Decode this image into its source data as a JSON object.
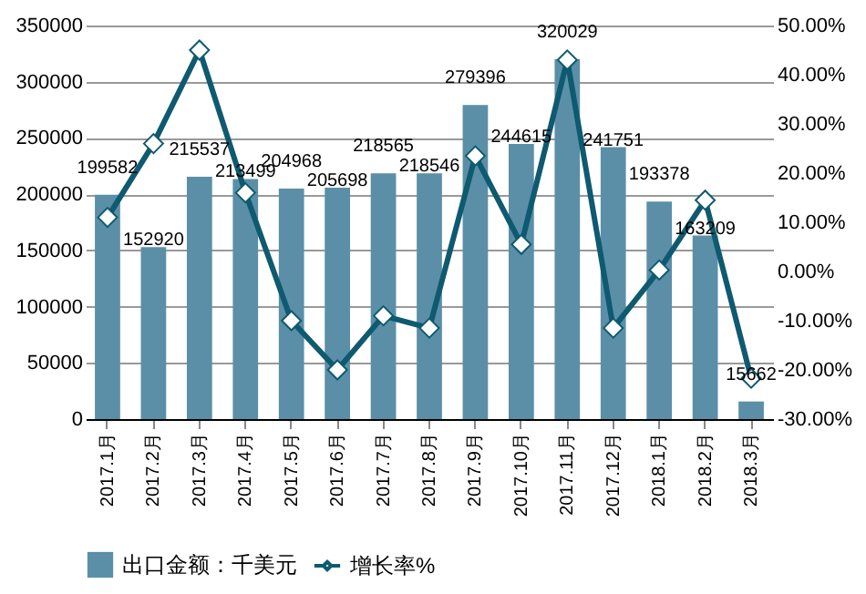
{
  "chart_data": {
    "type": "bar",
    "categories": [
      "2017.1月",
      "2017.2月",
      "2017.3月",
      "2017.4月",
      "2017.5月",
      "2017.6月",
      "2017.7月",
      "2017.8月",
      "2017.9月",
      "2017.10月",
      "2017.11月",
      "2017.12月",
      "2018.1月",
      "2018.2月",
      "2018.3月"
    ],
    "series": [
      {
        "name": "出口金额：千美元",
        "color": "#5b8fa8",
        "values": [
          199582,
          152920,
          215537,
          213499,
          204968,
          205698,
          218565,
          218546,
          279396,
          244615,
          320029,
          241751,
          193378,
          163209,
          15662
        ],
        "value_labels": [
          "199582",
          "152920",
          "215537",
          "213499",
          "204968",
          "205698",
          "218565",
          "218546",
          "279396",
          "244615",
          "320029",
          "241751",
          "193378",
          "163209",
          "15662"
        ]
      },
      {
        "name": "增长率%",
        "type": "line",
        "axis": "y2",
        "color": "#0e5a70",
        "marker": "diamond",
        "values": [
          11,
          26,
          45,
          16,
          -10,
          -20,
          -9,
          -11.5,
          23.5,
          5.5,
          43,
          -11.5,
          0.3,
          14.5,
          -21.7
        ]
      }
    ],
    "ylim": [
      0,
      350000
    ],
    "yticks": [
      0,
      50000,
      100000,
      150000,
      200000,
      250000,
      300000,
      350000
    ],
    "y2lim": [
      -30,
      50
    ],
    "y2ticks": [
      {
        "value": -30,
        "label": "-30.00%"
      },
      {
        "value": -20,
        "label": "-20.00%"
      },
      {
        "value": -10,
        "label": "-10.00%"
      },
      {
        "value": 0,
        "label": "0.00%"
      },
      {
        "value": 10,
        "label": "10.00%"
      },
      {
        "value": 20,
        "label": "20.00%"
      },
      {
        "value": 30,
        "label": "30.00%"
      },
      {
        "value": 40,
        "label": "40.00%"
      },
      {
        "value": 50,
        "label": "50.00%"
      }
    ],
    "grid": "y",
    "legend": "bottom"
  }
}
